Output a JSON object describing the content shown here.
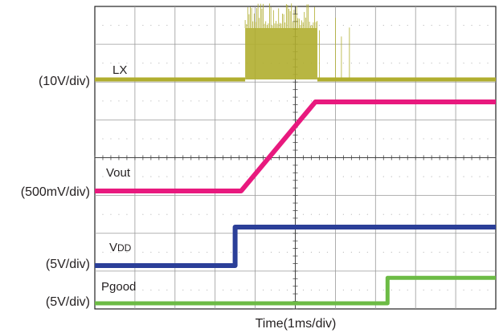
{
  "chart_data": {
    "type": "line",
    "title": "",
    "xlabel": "Time(1ms/div)",
    "ylabel": "",
    "x_unit": "ms",
    "grid": true,
    "xlim": [
      0,
      10
    ],
    "divisions": {
      "x": 10,
      "y": 8
    },
    "series": [
      {
        "name": "LX",
        "scale": "(10V/div)",
        "color": "#b0ae2f",
        "points": [
          [
            0,
            0
          ],
          [
            3.75,
            0
          ],
          [
            3.75,
            12
          ],
          [
            5.55,
            12
          ],
          [
            5.55,
            0
          ],
          [
            10,
            0
          ]
        ]
      },
      {
        "name": "Vout",
        "scale": "(500mV/div)",
        "color": "#e8197e",
        "points": [
          [
            0,
            0
          ],
          [
            3.65,
            0
          ],
          [
            5.5,
            1.5
          ],
          [
            10,
            1.5
          ]
        ]
      },
      {
        "name": "VDD",
        "name_parts": [
          "V",
          "DD"
        ],
        "scale": "(5V/div)",
        "color": "#2b3f98",
        "points": [
          [
            0,
            0
          ],
          [
            3.5,
            0
          ],
          [
            3.5,
            5
          ],
          [
            10,
            5
          ]
        ]
      },
      {
        "name": "Pgood",
        "scale": "(5V/div)",
        "color": "#6cbb45",
        "points": [
          [
            0,
            0
          ],
          [
            7.3,
            0
          ],
          [
            7.3,
            3.3
          ],
          [
            10,
            3.3
          ]
        ]
      }
    ]
  }
}
